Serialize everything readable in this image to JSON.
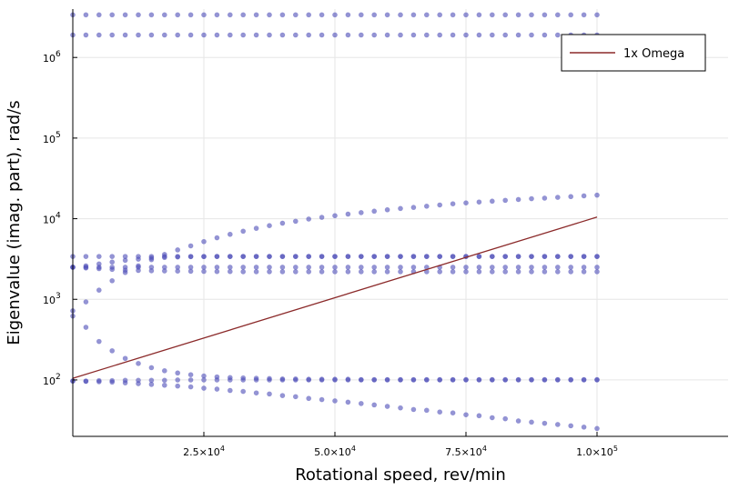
{
  "chart_data": {
    "type": "scatter",
    "xlabel": "Rotational speed, rev/min",
    "ylabel": "Eigenvalue (imag. part), rad/s",
    "xlim": [
      0,
      125000
    ],
    "ylim_log10": [
      1.3,
      6.6
    ],
    "y_scale": "log",
    "grid": true,
    "legend_position": "top-right",
    "x_ticks": [
      {
        "value": 25000,
        "label": "2.5×10",
        "exp": "4"
      },
      {
        "value": 50000,
        "label": "5.0×10",
        "exp": "4"
      },
      {
        "value": 75000,
        "label": "7.5×10",
        "exp": "4"
      },
      {
        "value": 100000,
        "label": "1.0×10",
        "exp": "5"
      }
    ],
    "y_ticks": [
      {
        "value": 100,
        "label": "10",
        "exp": "2"
      },
      {
        "value": 1000,
        "label": "10",
        "exp": "3"
      },
      {
        "value": 10000,
        "label": "10",
        "exp": "4"
      },
      {
        "value": 100000,
        "label": "10",
        "exp": "5"
      },
      {
        "value": 1000000,
        "label": "10",
        "exp": "6"
      }
    ],
    "scatter_color": "#4c4cb8",
    "line_color": "#8b2a2a",
    "series": [
      {
        "kind": "scatter",
        "x": [
          0,
          2500,
          5000,
          7500,
          10000,
          12500,
          15000,
          17500,
          20000,
          22500,
          25000,
          27500,
          30000,
          32500,
          35000,
          37500,
          40000,
          42500,
          45000,
          47500,
          50000,
          52500,
          55000,
          57500,
          60000,
          62500,
          65000,
          67500,
          70000,
          72500,
          75000,
          77500,
          80000,
          82500,
          85000,
          87500,
          90000,
          92500,
          95000,
          97500,
          100000
        ],
        "y": [
          3380000,
          3380000,
          3380000,
          3380000,
          3380000,
          3380000,
          3380000,
          3380000,
          3380000,
          3380000,
          3380000,
          3380000,
          3380000,
          3380000,
          3380000,
          3380000,
          3380000,
          3380000,
          3380000,
          3380000,
          3380000,
          3380000,
          3380000,
          3380000,
          3380000,
          3380000,
          3380000,
          3380000,
          3380000,
          3380000,
          3380000,
          3380000,
          3380000,
          3380000,
          3380000,
          3380000,
          3380000,
          3380000,
          3380000,
          3380000,
          3380000
        ]
      },
      {
        "kind": "scatter",
        "x": [
          0,
          2500,
          5000,
          7500,
          10000,
          12500,
          15000,
          17500,
          20000,
          22500,
          25000,
          27500,
          30000,
          32500,
          35000,
          37500,
          40000,
          42500,
          45000,
          47500,
          50000,
          52500,
          55000,
          57500,
          60000,
          62500,
          65000,
          67500,
          70000,
          72500,
          75000,
          77500,
          80000,
          82500,
          85000,
          87500,
          90000,
          92500,
          95000,
          97500,
          100000
        ],
        "y": [
          1900000,
          1900000,
          1900000,
          1900000,
          1900000,
          1900000,
          1900000,
          1900000,
          1900000,
          1900000,
          1900000,
          1900000,
          1900000,
          1900000,
          1900000,
          1900000,
          1900000,
          1900000,
          1900000,
          1900000,
          1900000,
          1900000,
          1900000,
          1900000,
          1900000,
          1900000,
          1900000,
          1900000,
          1900000,
          1900000,
          1900000,
          1900000,
          1900000,
          1900000,
          1900000,
          1900000,
          1900000,
          1900000,
          1900000,
          1900000,
          1900000
        ]
      },
      {
        "kind": "scatter",
        "x": [
          0,
          2500,
          5000,
          7500,
          10000,
          12500,
          15000,
          17500,
          20000,
          22500,
          25000,
          27500,
          30000,
          32500,
          35000,
          37500,
          40000,
          42500,
          45000,
          47500,
          50000,
          52500,
          55000,
          57500,
          60000,
          62500,
          65000,
          67500,
          70000,
          72500,
          75000,
          77500,
          80000,
          82500,
          85000,
          87500,
          90000,
          92500,
          95000,
          97500,
          100000
        ],
        "y": [
          3400,
          3400,
          3400,
          3400,
          3400,
          3400,
          3400,
          3400,
          3400,
          3400,
          3400,
          3400,
          3400,
          3400,
          3400,
          3400,
          3400,
          3400,
          3400,
          3400,
          3400,
          3400,
          3400,
          3400,
          3400,
          3400,
          3400,
          3400,
          3400,
          3400,
          3400,
          3400,
          3400,
          3400,
          3400,
          3400,
          3400,
          3400,
          3400,
          3400,
          3400
        ]
      },
      {
        "kind": "scatter",
        "x": [
          0,
          2500,
          5000,
          7500,
          10000,
          12500,
          15000,
          17500,
          20000,
          22500,
          25000,
          27500,
          30000,
          32500,
          35000,
          37500,
          40000,
          42500,
          45000,
          47500,
          50000,
          52500,
          55000,
          57500,
          60000,
          62500,
          65000,
          67500,
          70000,
          72500,
          75000,
          77500,
          80000,
          82500,
          85000,
          87500,
          90000,
          92500,
          95000,
          97500,
          100000
        ],
        "y": [
          2500,
          2500,
          2500,
          2500,
          2500,
          2500,
          2500,
          2500,
          2500,
          2500,
          2500,
          2500,
          2500,
          2500,
          2500,
          2500,
          2500,
          2500,
          2500,
          2500,
          2500,
          2500,
          2500,
          2500,
          2500,
          2500,
          2500,
          2500,
          2500,
          2500,
          2500,
          2500,
          2500,
          2500,
          2500,
          2500,
          2500,
          2500,
          2500,
          2500,
          2500
        ]
      },
      {
        "kind": "scatter",
        "x": [
          0,
          2500,
          5000,
          7500,
          10000,
          12500,
          15000,
          17500,
          20000,
          22500,
          25000,
          27500,
          30000,
          32500,
          35000,
          37500,
          40000,
          42500,
          45000,
          47500,
          50000,
          52500,
          55000,
          57500,
          60000,
          62500,
          65000,
          67500,
          70000,
          72500,
          75000,
          77500,
          80000,
          82500,
          85000,
          87500,
          90000,
          92500,
          95000,
          97500,
          100000
        ],
        "y": [
          2500,
          2450,
          2400,
          2350,
          2300,
          2280,
          2260,
          2250,
          2240,
          2230,
          2220,
          2210,
          2210,
          2200,
          2200,
          2200,
          2200,
          2200,
          2200,
          2200,
          2200,
          2200,
          2200,
          2200,
          2200,
          2200,
          2200,
          2200,
          2200,
          2200,
          2200,
          2200,
          2200,
          2200,
          2200,
          2200,
          2200,
          2200,
          2200,
          2200,
          2200
        ]
      },
      {
        "kind": "scatter",
        "x": [
          0,
          2500,
          5000,
          7500,
          10000,
          12500,
          15000,
          17500,
          20000,
          22500,
          25000,
          27500,
          30000,
          32500,
          35000,
          37500,
          40000,
          42500,
          45000,
          47500,
          50000,
          52500,
          55000,
          57500,
          60000,
          62500,
          65000,
          67500,
          70000,
          72500,
          75000,
          77500,
          80000,
          82500,
          85000,
          87500,
          90000,
          92500,
          95000,
          97500,
          100000
        ],
        "y": [
          2500,
          2600,
          2750,
          2900,
          3050,
          3150,
          3250,
          3300,
          3350,
          3380,
          3390,
          3400,
          3400,
          3400,
          3400,
          3400,
          3400,
          3400,
          3400,
          3400,
          3400,
          3400,
          3400,
          3400,
          3400,
          3400,
          3400,
          3400,
          3400,
          3400,
          3400,
          3400,
          3400,
          3400,
          3400,
          3400,
          3400,
          3400,
          3400,
          3400,
          3400
        ]
      },
      {
        "kind": "scatter",
        "x": [
          0,
          2500,
          5000,
          7500,
          10000,
          12500,
          15000,
          17500,
          20000,
          22500,
          25000,
          27500,
          30000,
          32500,
          35000,
          37500,
          40000,
          42500,
          45000,
          47500,
          50000,
          52500,
          55000,
          57500,
          60000,
          62500,
          65000,
          67500,
          70000,
          72500,
          75000,
          77500,
          80000,
          82500,
          85000,
          87500,
          90000,
          92500,
          95000,
          97500,
          100000
        ],
        "y": [
          720,
          930,
          1300,
          1700,
          2150,
          2600,
          3100,
          3600,
          4100,
          4600,
          5200,
          5800,
          6400,
          7000,
          7600,
          8200,
          8800,
          9300,
          9900,
          10400,
          10900,
          11400,
          11900,
          12400,
          12900,
          13400,
          13800,
          14300,
          14800,
          15300,
          15700,
          16100,
          16500,
          16900,
          17300,
          17700,
          18000,
          18400,
          18800,
          19200,
          19600
        ]
      },
      {
        "kind": "scatter",
        "x": [
          0,
          2500,
          5000,
          7500,
          10000,
          12500,
          15000,
          17500,
          20000,
          22500,
          25000,
          27500,
          30000,
          32500,
          35000,
          37500,
          40000,
          42500,
          45000,
          47500,
          50000,
          52500,
          55000,
          57500,
          60000,
          62500,
          65000,
          67500,
          70000,
          72500,
          75000,
          77500,
          80000,
          82500,
          85000,
          87500,
          90000,
          92500,
          95000,
          97500,
          100000
        ],
        "y": [
          620,
          450,
          300,
          230,
          185,
          160,
          142,
          130,
          122,
          116,
          112,
          109,
          107,
          106,
          105,
          104,
          103,
          103,
          102,
          102,
          102,
          102,
          101,
          101,
          101,
          101,
          101,
          101,
          101,
          101,
          101,
          101,
          101,
          101,
          101,
          101,
          101,
          101,
          101,
          101,
          101
        ]
      },
      {
        "kind": "scatter",
        "x": [
          0,
          2500,
          5000,
          7500,
          10000,
          12500,
          15000,
          17500,
          20000,
          22500,
          25000,
          27500,
          30000,
          32500,
          35000,
          37500,
          40000,
          42500,
          45000,
          47500,
          50000,
          52500,
          55000,
          57500,
          60000,
          62500,
          65000,
          67500,
          70000,
          72500,
          75000,
          77500,
          80000,
          82500,
          85000,
          87500,
          90000,
          92500,
          95000,
          97500,
          100000
        ],
        "y": [
          97,
          97,
          98,
          98,
          99,
          99,
          99,
          99,
          100,
          100,
          100,
          100,
          100,
          100,
          100,
          100,
          100,
          100,
          100,
          100,
          100,
          100,
          100,
          100,
          100,
          100,
          100,
          100,
          100,
          100,
          100,
          100,
          100,
          100,
          100,
          100,
          100,
          100,
          100,
          100,
          100
        ]
      },
      {
        "kind": "scatter",
        "x": [
          0,
          2500,
          5000,
          7500,
          10000,
          12500,
          15000,
          17500,
          20000,
          22500,
          25000,
          27500,
          30000,
          32500,
          35000,
          37500,
          40000,
          42500,
          45000,
          47500,
          50000,
          52500,
          55000,
          57500,
          60000,
          62500,
          65000,
          67500,
          70000,
          72500,
          75000,
          77500,
          80000,
          82500,
          85000,
          87500,
          90000,
          92500,
          95000,
          97500,
          100000
        ],
        "y": [
          97,
          96,
          95,
          94,
          92,
          90,
          88,
          86,
          84,
          82,
          79,
          77,
          74,
          72,
          69,
          67,
          64,
          62,
          59,
          57,
          55,
          53,
          51,
          49,
          47,
          45,
          43,
          42,
          40,
          39,
          37,
          36,
          34,
          33,
          31,
          30,
          29,
          28,
          27,
          26,
          25
        ]
      },
      {
        "kind": "line",
        "name": "1x Omega",
        "x": [
          0,
          100000
        ],
        "y": [
          104.7,
          10472
        ]
      }
    ]
  }
}
